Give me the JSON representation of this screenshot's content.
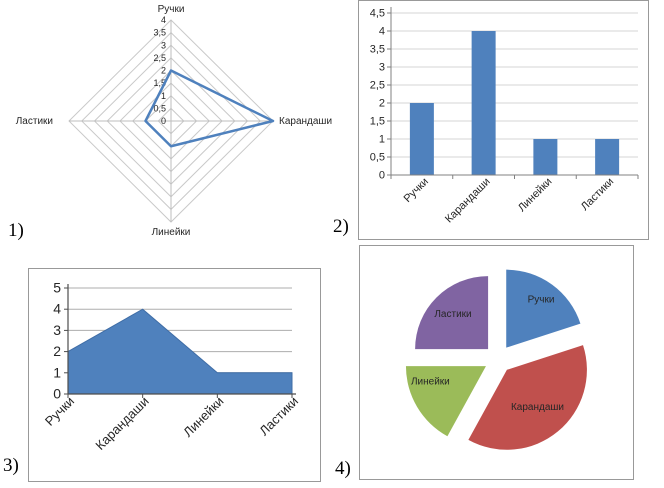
{
  "figure_labels": [
    "1)",
    "2)",
    "3)",
    "4)"
  ],
  "categories": [
    "Ручки",
    "Карандаши",
    "Линейки",
    "Ластики"
  ],
  "colors": {
    "blue": "#4F81BD",
    "red": "#C0504D",
    "green": "#9BBB59",
    "purple": "#8064A2",
    "grid_light": "#D6D6D6",
    "grid_medium": "#ADADAD",
    "radar_ring": "#C9C9C9",
    "axis": "#808080",
    "panel_border": "#999999"
  },
  "chart_data": [
    {
      "id": "radar",
      "type": "radar",
      "title": "",
      "categories": [
        "Ручки",
        "Карандаши",
        "Линейки",
        "Ластики"
      ],
      "values": [
        2,
        4,
        1,
        1
      ],
      "rmax": 4,
      "rstep": 0.5,
      "tick_labels": [
        "0",
        "0,5",
        "1",
        "1,5",
        "2",
        "2,5",
        "3",
        "3,5",
        "4"
      ],
      "grid": true,
      "legend": "none",
      "line_color": "#4F81BD"
    },
    {
      "id": "bar",
      "type": "bar",
      "title": "",
      "categories": [
        "Ручки",
        "Карандаши",
        "Линейки",
        "Ластики"
      ],
      "values": [
        2,
        4,
        1,
        1
      ],
      "xlabel": "",
      "ylabel": "",
      "ylim": [
        0,
        4.5
      ],
      "ytick_labels": [
        "0",
        "0,5",
        "1",
        "1,5",
        "2",
        "2,5",
        "3",
        "3,5",
        "4",
        "4,5"
      ],
      "grid": true,
      "legend": "none",
      "bar_color": "#4F81BD"
    },
    {
      "id": "area",
      "type": "area",
      "title": "",
      "categories": [
        "Ручки",
        "Карандаши",
        "Линейки",
        "Ластики"
      ],
      "values": [
        2,
        4,
        1,
        1
      ],
      "xlabel": "",
      "ylabel": "",
      "ylim": [
        0,
        5
      ],
      "ytick_labels": [
        "0",
        "1",
        "2",
        "3",
        "4",
        "5"
      ],
      "grid": true,
      "legend": "none",
      "fill_color": "#4F81BD"
    },
    {
      "id": "pie",
      "type": "pie",
      "title": "",
      "categories": [
        "Ручки",
        "Карандаши",
        "Линейки",
        "Ластики"
      ],
      "percent_estimated": [
        20,
        38,
        17,
        25
      ],
      "exploded": true,
      "labels_position": "inside",
      "slice_colors": [
        "#4F81BD",
        "#C0504D",
        "#9BBB59",
        "#8064A2"
      ]
    }
  ]
}
